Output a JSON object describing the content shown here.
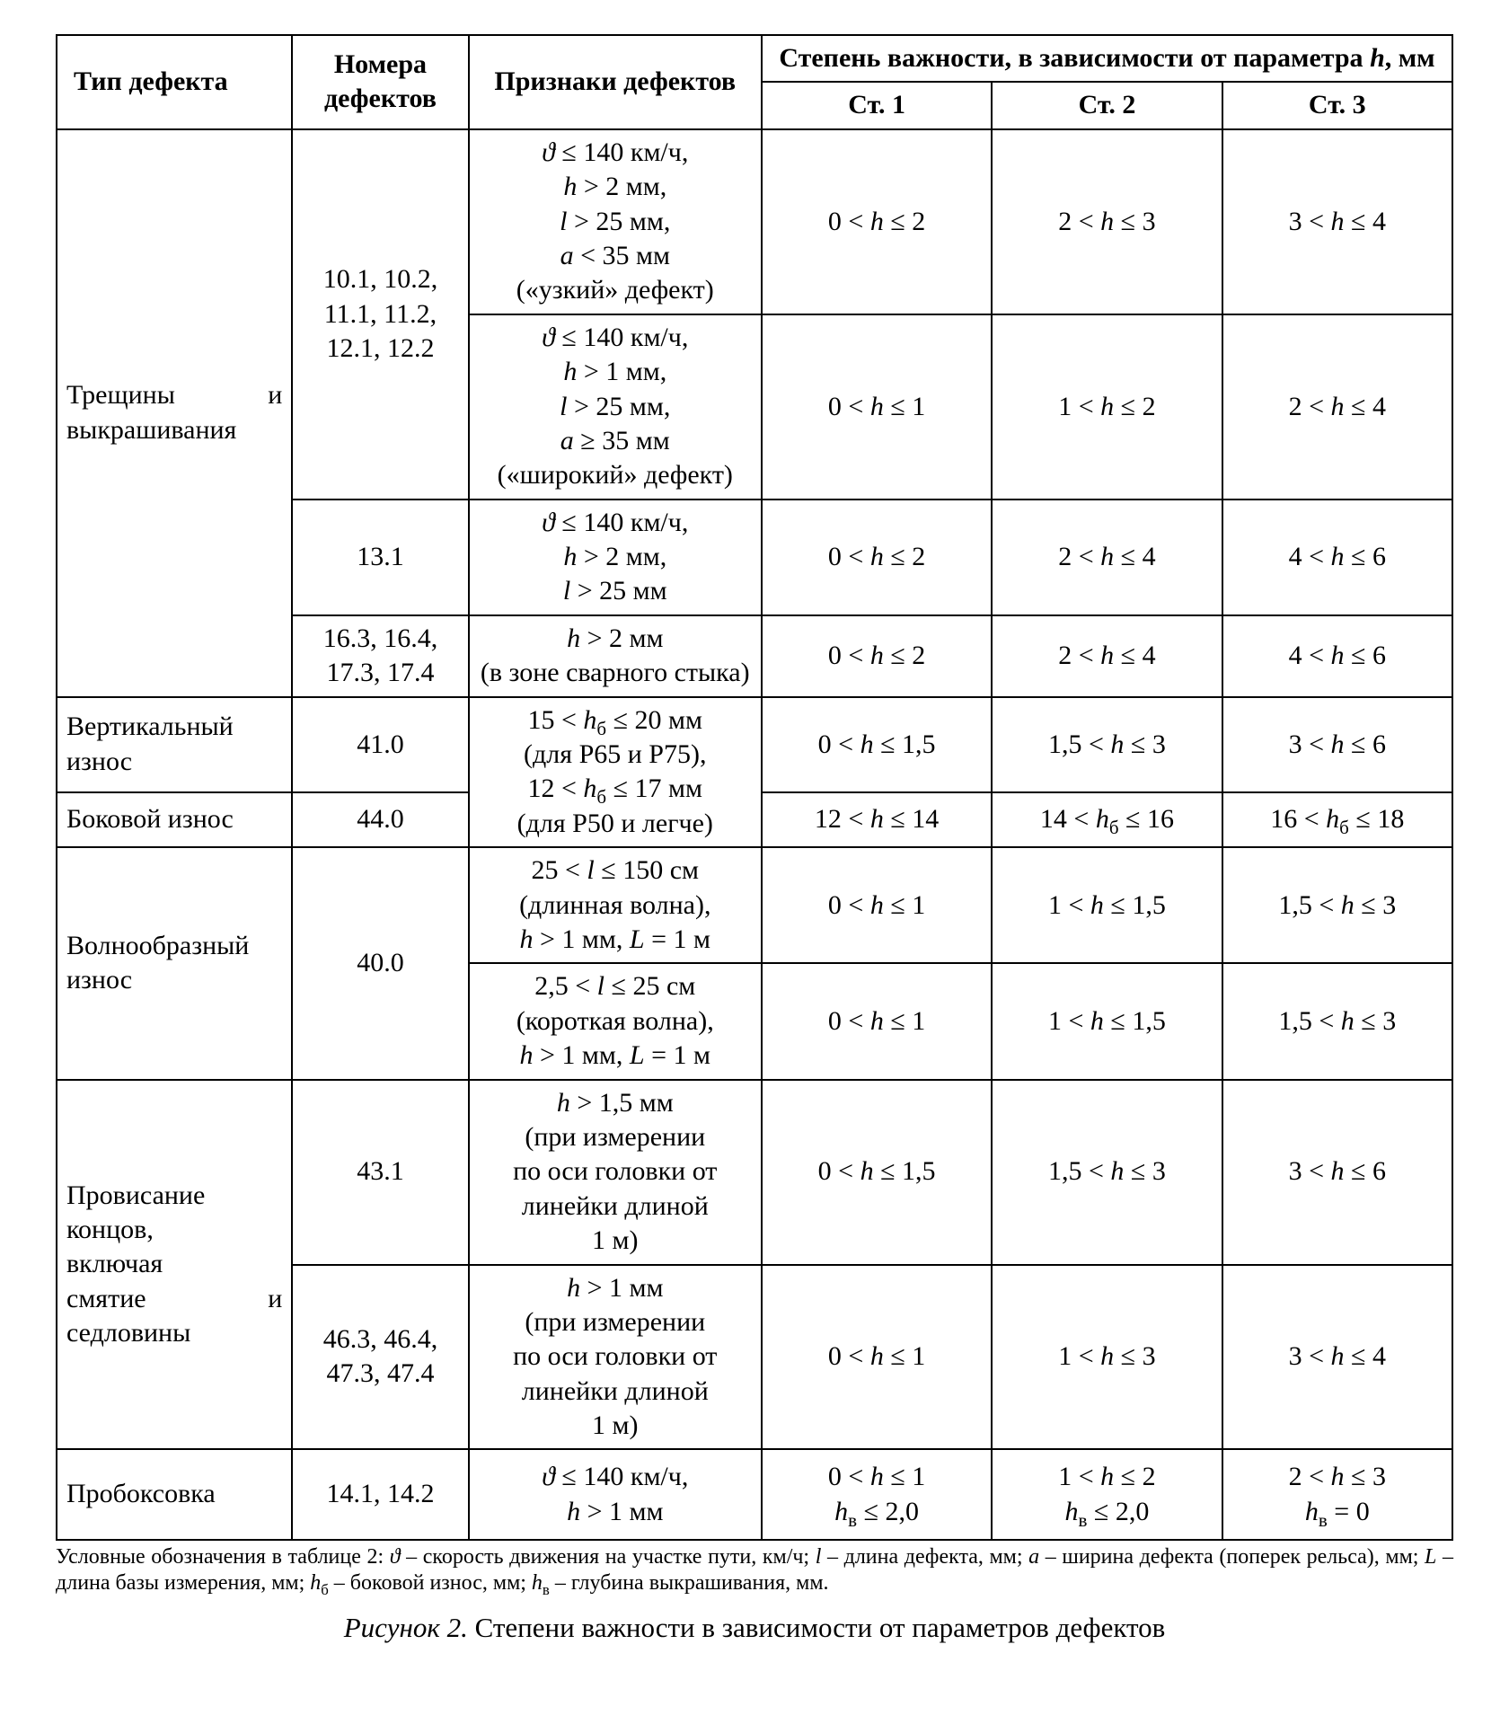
{
  "columns": {
    "c1_width": 262,
    "c2_width": 196,
    "c3_width": 326,
    "c4_width": 256,
    "c5_width": 256,
    "c6_width": 256
  },
  "header": {
    "type": "Тип дефекта",
    "numbers": "Номера дефектов",
    "signs": "Признаки дефектов",
    "degree_group_pre": "Степень важности, в зависимости от параметра ",
    "degree_group_var": "h",
    "degree_group_unit": ", мм",
    "d1": "Ст. 1",
    "d2": "Ст. 2",
    "d3": "Ст. 3"
  },
  "rows": [
    {
      "type_lines": [
        "Трещины",
        "и"
      ],
      "type_second": "выкрашивания",
      "type_rowspan": 4,
      "numbers_1": "10.1, 10.2, 11.1, 11.2, 12.1, 12.2",
      "numbers_1_rowspan": 2,
      "signs_1": [
        "ϑ ≤ 140 км/ч,",
        "h > 2 мм,",
        "l > 25 мм,",
        "a < 35 мм",
        "(«узкий» дефект)"
      ],
      "d1_1": "0 < h ≤ 2",
      "d2_1": "2 < h ≤ 3",
      "d3_1": "3 < h ≤ 4",
      "signs_2": [
        "ϑ ≤ 140 км/ч,",
        "h > 1 мм,",
        "l > 25 мм,",
        "a ≥ 35 мм",
        "(«широкий» дефект)"
      ],
      "d1_2": "0 < h ≤ 1",
      "d2_2": "1 < h ≤ 2",
      "d3_2": "2 < h ≤ 4",
      "numbers_3": "13.1",
      "signs_3": [
        "ϑ ≤ 140 км/ч,",
        "h > 2 мм,",
        "l > 25 мм"
      ],
      "d1_3": "0 < h ≤ 2",
      "d2_3": "2 < h ≤ 4",
      "d3_3": "4 < h ≤ 6",
      "numbers_4": "16.3, 16.4, 17.3, 17.4",
      "signs_4": [
        "h > 2 мм",
        "(в зоне сварного стыка)"
      ],
      "d1_4": "0 < h ≤ 2",
      "d2_4": "2 < h ≤ 4",
      "d3_4": "4 < h ≤ 6"
    },
    {
      "type_a": "Вертикальный износ",
      "numbers_a": "41.0",
      "type_b": "Боковой износ",
      "numbers_b": "44.0",
      "signs_shared": [
        "15 < h₆ ≤ 20 мм",
        "(для Р65 и Р75),",
        "12 < h₆ ≤ 17 мм",
        "(для Р50 и легче)"
      ],
      "d1_a": "0 < h ≤ 1,5",
      "d2_a": "1,5 < h ≤ 3",
      "d3_a": "3 < h ≤ 6",
      "d1_b": "12 < h ≤ 14",
      "d2_b": "14 < h₆ ≤ 16",
      "d3_b": "16 < h₆ ≤ 18"
    },
    {
      "type": "Волнообразный износ",
      "numbers": "40.0",
      "signs_1": [
        "25 < l ≤ 150 см",
        "(длинная волна),",
        "h > 1 мм, L = 1 м"
      ],
      "d1_1": "0 < h ≤ 1",
      "d2_1": "1 < h ≤ 1,5",
      "d3_1": "1,5 < h ≤ 3",
      "signs_2": [
        "2,5 < l ≤ 25 см",
        "(короткая волна),",
        "h > 1 мм, L = 1 м"
      ],
      "d1_2": "0 < h ≤ 1",
      "d2_2": "1 < h ≤ 1,5",
      "d3_2": "1,5 < h ≤ 3"
    },
    {
      "type_lines": [
        "Провисание",
        "концов,",
        "включая"
      ],
      "type_justify": [
        "смятие",
        "и"
      ],
      "type_last": "седловины",
      "numbers_1": "43.1",
      "signs_1": [
        "h > 1,5 мм",
        "(при измерении",
        "по оси головки от",
        "линейки длиной",
        "1 м)"
      ],
      "d1_1": "0 < h ≤ 1,5",
      "d2_1": "1,5 < h ≤ 3",
      "d3_1": "3 < h ≤ 6",
      "numbers_2": "46.3, 46.4, 47.3, 47.4",
      "signs_2": [
        "h > 1 мм",
        "(при измерении",
        "по оси головки от",
        "линейки длиной",
        "1 м)"
      ],
      "d1_2": "0 < h ≤ 1",
      "d2_2": "1 < h ≤ 3",
      "d3_2": "3 < h ≤ 4"
    },
    {
      "type": "Пробоксовка",
      "numbers": "14.1, 14.2",
      "signs": [
        "ϑ ≤ 140 км/ч,",
        "h > 1 мм"
      ],
      "d1": [
        "0 < h ≤ 1",
        "hв ≤ 2,0"
      ],
      "d2": [
        "1 < h ≤ 2",
        "hв ≤ 2,0"
      ],
      "d3": [
        "2 < h ≤ 3",
        "hв = 0"
      ]
    }
  ],
  "note": "Условные обозначения в таблице 2: ϑ – скорость движения на участке пути, км/ч; l – длина дефекта, мм; a – ширина дефекта (поперек рельса), мм; L – длина базы измерения, мм; h₆ – боковой износ, мм; hв – глубина выкрашивания, мм.",
  "caption_label": "Рисунок 2.",
  "caption_text": "Степени важности в зависимости от параметров дефектов"
}
